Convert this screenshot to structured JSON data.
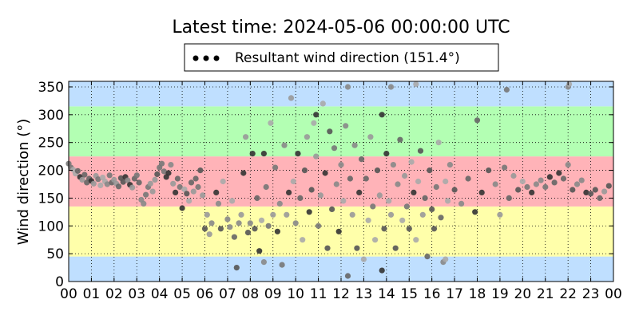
{
  "chart_data": {
    "type": "scatter",
    "title": "Latest time: 2024-05-06 00:00:00 UTC",
    "xlabel": "",
    "ylabel": "Wind direction (°)",
    "xlim": [
      0,
      24
    ],
    "ylim": [
      0,
      360
    ],
    "x_ticks": [
      "00",
      "01",
      "02",
      "03",
      "04",
      "05",
      "06",
      "07",
      "08",
      "09",
      "10",
      "11",
      "12",
      "13",
      "14",
      "15",
      "16",
      "17",
      "18",
      "19",
      "20",
      "21",
      "22",
      "23",
      "00"
    ],
    "y_ticks": [
      0,
      50,
      100,
      150,
      200,
      250,
      300,
      350
    ],
    "grid": true,
    "legend": {
      "placement": "top-center",
      "label": "Resultant wind direction (151.4°)"
    },
    "bands": [
      {
        "from": 0,
        "to": 45,
        "color": "#bfdfff"
      },
      {
        "from": 45,
        "to": 135,
        "color": "#ffffaa"
      },
      {
        "from": 135,
        "to": 225,
        "color": "#ffb3b8"
      },
      {
        "from": 225,
        "to": 315,
        "color": "#b3ffb3"
      },
      {
        "from": 315,
        "to": 360,
        "color": "#bfdfff"
      }
    ],
    "series": [
      {
        "name": "Resultant wind direction (151.4°)",
        "points": [
          [
            0.0,
            212
          ],
          [
            0.1,
            205
          ],
          [
            0.2,
            201
          ],
          [
            0.3,
            194
          ],
          [
            0.4,
            199
          ],
          [
            0.5,
            188
          ],
          [
            0.6,
            183
          ],
          [
            0.7,
            192
          ],
          [
            0.8,
            178
          ],
          [
            0.9,
            185
          ],
          [
            1.0,
            181
          ],
          [
            1.1,
            176
          ],
          [
            1.2,
            190
          ],
          [
            1.3,
            184
          ],
          [
            1.4,
            173
          ],
          [
            1.5,
            187
          ],
          [
            1.6,
            180
          ],
          [
            1.7,
            175
          ],
          [
            1.8,
            191
          ],
          [
            1.9,
            178
          ],
          [
            2.0,
            183
          ],
          [
            2.1,
            176
          ],
          [
            2.2,
            171
          ],
          [
            2.3,
            186
          ],
          [
            2.4,
            179
          ],
          [
            2.5,
            188
          ],
          [
            2.6,
            182
          ],
          [
            2.7,
            174
          ],
          [
            2.8,
            169
          ],
          [
            2.9,
            185
          ],
          [
            3.0,
            191
          ],
          [
            3.1,
            178
          ],
          [
            3.2,
            147
          ],
          [
            3.3,
            140
          ],
          [
            3.4,
            156
          ],
          [
            3.5,
            170
          ],
          [
            3.6,
            176
          ],
          [
            3.7,
            162
          ],
          [
            3.8,
            183
          ],
          [
            3.9,
            193
          ],
          [
            4.0,
            205
          ],
          [
            4.1,
            212
          ],
          [
            4.2,
            198
          ],
          [
            4.3,
            188
          ],
          [
            4.4,
            195
          ],
          [
            4.5,
            210
          ],
          [
            4.6,
            176
          ],
          [
            4.7,
            160
          ],
          [
            4.8,
            185
          ],
          [
            4.9,
            170
          ],
          [
            5.0,
            132
          ],
          [
            5.1,
            166
          ],
          [
            5.2,
            158
          ],
          [
            5.3,
            145
          ],
          [
            5.4,
            178
          ],
          [
            5.5,
            162
          ],
          [
            5.6,
            185
          ],
          [
            5.7,
            170
          ],
          [
            5.8,
            200
          ],
          [
            5.9,
            155
          ],
          [
            6.0,
            95
          ],
          [
            6.1,
            120
          ],
          [
            6.2,
            85
          ],
          [
            6.3,
            105
          ],
          [
            6.5,
            160
          ],
          [
            6.6,
            140
          ],
          [
            6.7,
            95
          ],
          [
            6.8,
            180
          ],
          [
            7.0,
            112
          ],
          [
            7.1,
            98
          ],
          [
            7.2,
            145
          ],
          [
            7.3,
            80
          ],
          [
            7.4,
            25
          ],
          [
            7.5,
            105
          ],
          [
            7.6,
            120
          ],
          [
            7.7,
            195
          ],
          [
            7.8,
            260
          ],
          [
            7.9,
            88
          ],
          [
            8.0,
            105
          ],
          [
            8.1,
            230
          ],
          [
            8.2,
            95
          ],
          [
            8.3,
            150
          ],
          [
            8.4,
            55
          ],
          [
            8.5,
            110
          ],
          [
            8.6,
            35
          ],
          [
            8.7,
            170
          ],
          [
            8.8,
            100
          ],
          [
            8.9,
            285
          ],
          [
            9.0,
            120
          ],
          [
            9.1,
            205
          ],
          [
            9.2,
            90
          ],
          [
            9.3,
            140
          ],
          [
            9.4,
            30
          ],
          [
            9.5,
            245
          ],
          [
            9.6,
            120
          ],
          [
            9.7,
            160
          ],
          [
            9.8,
            330
          ],
          [
            9.9,
            180
          ],
          [
            10.0,
            105
          ],
          [
            10.1,
            230
          ],
          [
            10.2,
            150
          ],
          [
            10.3,
            75
          ],
          [
            10.4,
            200
          ],
          [
            10.5,
            260
          ],
          [
            10.6,
            125
          ],
          [
            10.7,
            165
          ],
          [
            10.8,
            285
          ],
          [
            10.9,
            225
          ],
          [
            11.0,
            100
          ],
          [
            11.1,
            155
          ],
          [
            11.2,
            320
          ],
          [
            11.3,
            195
          ],
          [
            11.4,
            60
          ],
          [
            11.5,
            270
          ],
          [
            11.6,
            130
          ],
          [
            11.7,
            240
          ],
          [
            11.8,
            175
          ],
          [
            11.9,
            90
          ],
          [
            12.0,
            210
          ],
          [
            12.1,
            145
          ],
          [
            12.2,
            280
          ],
          [
            12.3,
            10
          ],
          [
            12.4,
            185
          ],
          [
            12.5,
            120
          ],
          [
            12.6,
            245
          ],
          [
            12.7,
            60
          ],
          [
            12.8,
            160
          ],
          [
            12.9,
            220
          ],
          [
            13.0,
            40
          ],
          [
            13.1,
            185
          ],
          [
            13.2,
            110
          ],
          [
            13.3,
            260
          ],
          [
            13.4,
            135
          ],
          [
            13.5,
            75
          ],
          [
            13.6,
            200
          ],
          [
            13.7,
            155
          ],
          [
            13.8,
            300
          ],
          [
            13.9,
            95
          ],
          [
            14.0,
            230
          ],
          [
            14.1,
            145
          ],
          [
            14.2,
            120
          ],
          [
            14.3,
            210
          ],
          [
            14.4,
            60
          ],
          [
            14.5,
            175
          ],
          [
            14.6,
            255
          ],
          [
            14.7,
            110
          ],
          [
            14.8,
            190
          ],
          [
            14.9,
            135
          ],
          [
            15.0,
            95
          ],
          [
            15.1,
            215
          ],
          [
            15.2,
            160
          ],
          [
            15.3,
            75
          ],
          [
            15.4,
            180
          ],
          [
            15.5,
            235
          ],
          [
            15.6,
            120
          ],
          [
            15.7,
            150
          ],
          [
            15.8,
            45
          ],
          [
            15.9,
            200
          ],
          [
            16.0,
            130
          ],
          [
            16.1,
            95
          ],
          [
            16.2,
            170
          ],
          [
            16.3,
            250
          ],
          [
            16.4,
            115
          ],
          [
            16.5,
            35
          ],
          [
            16.6,
            180
          ],
          [
            16.7,
            145
          ],
          [
            16.8,
            210
          ],
          [
            17.0,
            165
          ],
          [
            17.3,
            140
          ],
          [
            17.6,
            185
          ],
          [
            17.9,
            125
          ],
          [
            18.0,
            290
          ],
          [
            18.2,
            160
          ],
          [
            18.5,
            200
          ],
          [
            18.8,
            175
          ],
          [
            19.0,
            120
          ],
          [
            19.2,
            205
          ],
          [
            19.4,
            150
          ],
          [
            19.6,
            190
          ],
          [
            19.8,
            165
          ],
          [
            20.0,
            180
          ],
          [
            20.2,
            170
          ],
          [
            20.4,
            160
          ],
          [
            20.6,
            175
          ],
          [
            20.8,
            182
          ],
          [
            21.0,
            170
          ],
          [
            21.2,
            188
          ],
          [
            21.4,
            178
          ],
          [
            21.6,
            195
          ],
          [
            21.8,
            185
          ],
          [
            22.0,
            210
          ],
          [
            22.2,
            165
          ],
          [
            22.4,
            175
          ],
          [
            22.6,
            182
          ],
          [
            22.8,
            160
          ],
          [
            23.0,
            158
          ],
          [
            23.2,
            165
          ],
          [
            23.4,
            150
          ],
          [
            23.6,
            162
          ],
          [
            23.8,
            172
          ],
          [
            22.0,
            350
          ],
          [
            22.05,
            355
          ],
          [
            8.6,
            230
          ],
          [
            10.9,
            300
          ],
          [
            12.3,
            350
          ],
          [
            14.2,
            350
          ],
          [
            15.3,
            355
          ],
          [
            19.3,
            345
          ],
          [
            13.8,
            20
          ],
          [
            16.6,
            40
          ]
        ]
      }
    ]
  }
}
